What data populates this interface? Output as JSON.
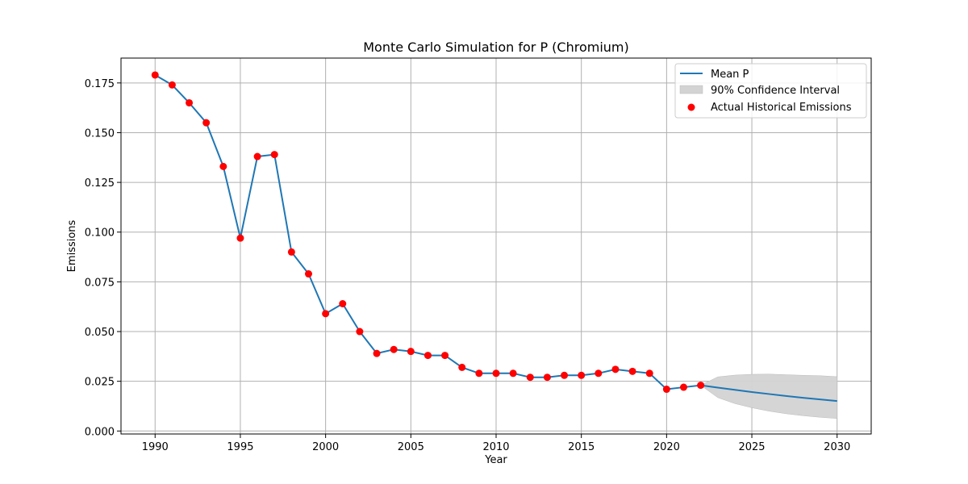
{
  "chart_data": {
    "type": "line",
    "title": "Monte Carlo Simulation for P (Chromium)",
    "xlabel": "Year",
    "ylabel": "Emissions",
    "xlim": [
      1988,
      2032
    ],
    "ylim": [
      -0.0015,
      0.1875
    ],
    "xticks": [
      1990,
      1995,
      2000,
      2005,
      2010,
      2015,
      2020,
      2025,
      2030
    ],
    "yticks": [
      0.0,
      0.025,
      0.05,
      0.075,
      0.1,
      0.125,
      0.15,
      0.175
    ],
    "ytick_labels": [
      "0.000",
      "0.025",
      "0.050",
      "0.075",
      "0.100",
      "0.125",
      "0.150",
      "0.175"
    ],
    "grid": true,
    "legend_position": "top-right",
    "colors": {
      "mean_line": "#1f77b4",
      "historical_points": "#ff0000",
      "confidence_fill": "#d3d3d3",
      "confidence_edge": "#bbbbbb",
      "grid": "#b0b0b0"
    },
    "series": [
      {
        "name": "Mean P",
        "type": "line",
        "x": [
          1990,
          1991,
          1992,
          1993,
          1994,
          1995,
          1996,
          1997,
          1998,
          1999,
          2000,
          2001,
          2002,
          2003,
          2004,
          2005,
          2006,
          2007,
          2008,
          2009,
          2010,
          2011,
          2012,
          2013,
          2014,
          2015,
          2016,
          2017,
          2018,
          2019,
          2020,
          2021,
          2022,
          2023,
          2024,
          2025,
          2026,
          2027,
          2028,
          2029,
          2030
        ],
        "y": [
          0.179,
          0.174,
          0.165,
          0.155,
          0.133,
          0.097,
          0.138,
          0.139,
          0.09,
          0.079,
          0.059,
          0.064,
          0.05,
          0.039,
          0.041,
          0.04,
          0.038,
          0.038,
          0.032,
          0.029,
          0.029,
          0.029,
          0.027,
          0.027,
          0.028,
          0.028,
          0.029,
          0.031,
          0.03,
          0.029,
          0.021,
          0.022,
          0.023,
          0.0218,
          0.0207,
          0.0196,
          0.0186,
          0.0176,
          0.0167,
          0.0159,
          0.0151
        ]
      },
      {
        "name": "90% Confidence Interval",
        "type": "area",
        "x": [
          2020,
          2021,
          2022,
          2023,
          2024,
          2025,
          2026,
          2027,
          2028,
          2029,
          2030
        ],
        "lower": [
          0.021,
          0.022,
          0.023,
          0.0168,
          0.0138,
          0.0117,
          0.01,
          0.0087,
          0.0077,
          0.0069,
          0.0063
        ],
        "upper": [
          0.021,
          0.022,
          0.023,
          0.0272,
          0.0281,
          0.0285,
          0.0286,
          0.0283,
          0.028,
          0.0278,
          0.0273
        ]
      },
      {
        "name": "Actual Historical Emissions",
        "type": "scatter",
        "x": [
          1990,
          1991,
          1992,
          1993,
          1994,
          1995,
          1996,
          1997,
          1998,
          1999,
          2000,
          2001,
          2002,
          2003,
          2004,
          2005,
          2006,
          2007,
          2008,
          2009,
          2010,
          2011,
          2012,
          2013,
          2014,
          2015,
          2016,
          2017,
          2018,
          2019,
          2020,
          2021,
          2022
        ],
        "y": [
          0.179,
          0.174,
          0.165,
          0.155,
          0.133,
          0.097,
          0.138,
          0.139,
          0.09,
          0.079,
          0.059,
          0.064,
          0.05,
          0.039,
          0.041,
          0.04,
          0.038,
          0.038,
          0.032,
          0.029,
          0.029,
          0.029,
          0.027,
          0.027,
          0.028,
          0.028,
          0.029,
          0.031,
          0.03,
          0.029,
          0.021,
          0.022,
          0.023
        ]
      }
    ]
  }
}
